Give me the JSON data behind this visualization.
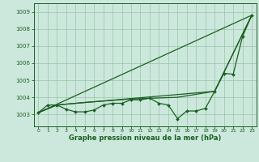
{
  "x": [
    0,
    1,
    2,
    3,
    4,
    5,
    6,
    7,
    8,
    9,
    10,
    11,
    12,
    13,
    14,
    15,
    16,
    17,
    18,
    19,
    20,
    21,
    22,
    23
  ],
  "measured": [
    1003.1,
    1003.55,
    1003.55,
    1003.3,
    1003.15,
    1003.15,
    1003.25,
    1003.55,
    1003.65,
    1003.65,
    1003.85,
    1003.85,
    1003.95,
    1003.65,
    1003.55,
    1002.75,
    1003.2,
    1003.2,
    1003.35,
    1004.35,
    1005.4,
    1005.35,
    1007.55,
    1008.8
  ],
  "upper_line_x": [
    0,
    23
  ],
  "upper_line_y": [
    1003.1,
    1008.8
  ],
  "lower_line_x": [
    0,
    2,
    19,
    23
  ],
  "lower_line_y": [
    1003.1,
    1003.55,
    1004.35,
    1008.8
  ],
  "smooth_line_x": [
    0,
    2,
    5,
    10,
    15,
    19,
    23
  ],
  "smooth_line_y": [
    1003.1,
    1003.55,
    1003.7,
    1003.9,
    1004.0,
    1004.35,
    1008.8
  ],
  "line_color": "#1a6020",
  "bg_color": "#cce8dc",
  "grid_color": "#99c4aa",
  "xlabel": "Graphe pression niveau de la mer (hPa)",
  "yticks": [
    1003,
    1004,
    1005,
    1006,
    1007,
    1008,
    1009
  ],
  "xticks": [
    0,
    1,
    2,
    3,
    4,
    5,
    6,
    7,
    8,
    9,
    10,
    11,
    12,
    13,
    14,
    15,
    16,
    17,
    18,
    19,
    20,
    21,
    22,
    23
  ],
  "ylim": [
    1002.3,
    1009.5
  ],
  "xlim": [
    -0.5,
    23.5
  ]
}
